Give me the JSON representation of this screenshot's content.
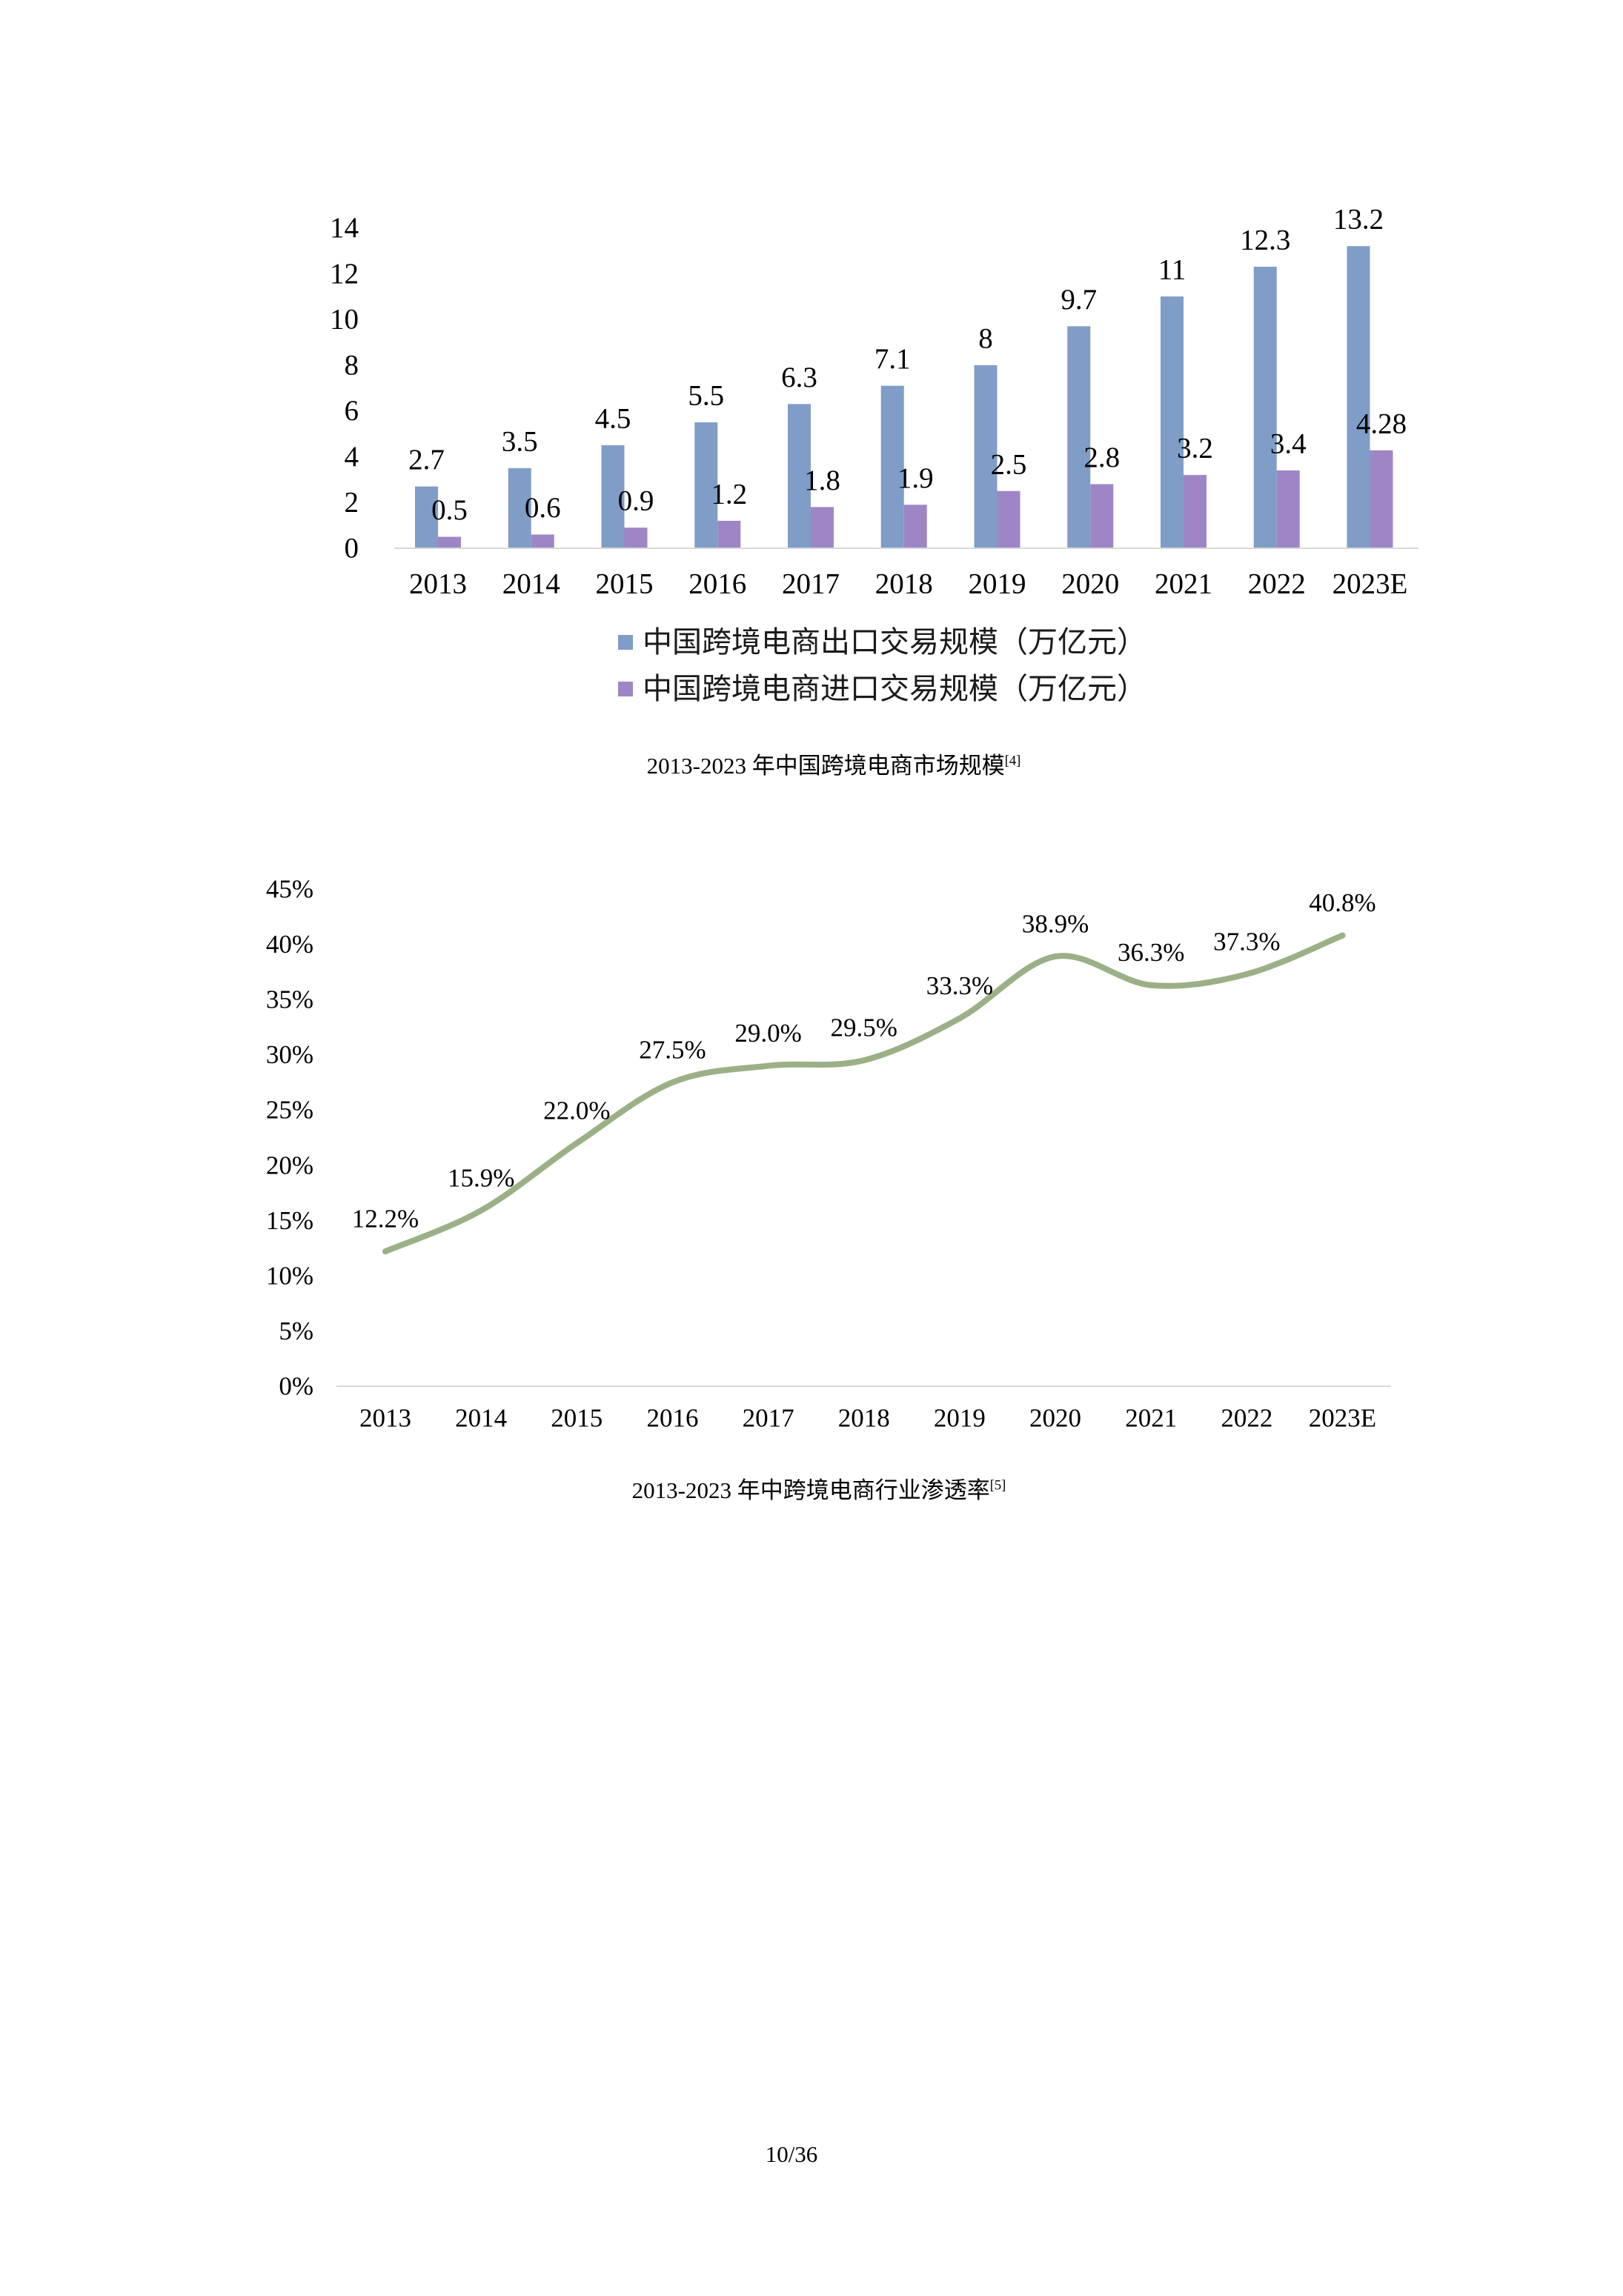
{
  "chart_data": [
    {
      "type": "bar",
      "title": "2013-2023 年中国跨境电商市场规模",
      "title_ref": "[4]",
      "categories": [
        "2013",
        "2014",
        "2015",
        "2016",
        "2017",
        "2018",
        "2019",
        "2020",
        "2021",
        "2022",
        "2023E"
      ],
      "series": [
        {
          "name": "中国跨境电商出口交易规模（万亿元）",
          "color": "#7f9dc7",
          "values": [
            2.7,
            3.5,
            4.5,
            5.5,
            6.3,
            7.1,
            8,
            9.7,
            11,
            12.3,
            13.2
          ]
        },
        {
          "name": "中国跨境电商进口交易规模（万亿元）",
          "color": "#9e86c6",
          "values": [
            0.5,
            0.6,
            0.9,
            1.2,
            1.8,
            1.9,
            2.5,
            2.8,
            3.2,
            3.4,
            4.28
          ]
        }
      ],
      "ylim": [
        0,
        14
      ],
      "yticks": [
        0,
        2,
        4,
        6,
        8,
        10,
        12,
        14
      ],
      "grid": false,
      "legend": "bottom"
    },
    {
      "type": "line",
      "title": "2013-2023 年中跨境电商行业渗透率",
      "title_ref": "[5]",
      "categories": [
        "2013",
        "2014",
        "2015",
        "2016",
        "2017",
        "2018",
        "2019",
        "2020",
        "2021",
        "2022",
        "2023E"
      ],
      "series": [
        {
          "color": "#9bb087",
          "smooth": true,
          "values": [
            12.2,
            15.9,
            22.0,
            27.5,
            29.0,
            29.5,
            33.3,
            38.9,
            36.3,
            37.3,
            40.8
          ],
          "labels": [
            "12.2%",
            "15.9%",
            "22.0%",
            "27.5%",
            "29.0%",
            "29.5%",
            "33.3%",
            "38.9%",
            "36.3%",
            "37.3%",
            "40.8%"
          ]
        }
      ],
      "ylim": [
        0,
        45
      ],
      "yticks": [
        "0%",
        "5%",
        "10%",
        "15%",
        "20%",
        "25%",
        "30%",
        "35%",
        "40%",
        "45%"
      ],
      "grid": false
    }
  ],
  "page": {
    "number": "10/36"
  }
}
